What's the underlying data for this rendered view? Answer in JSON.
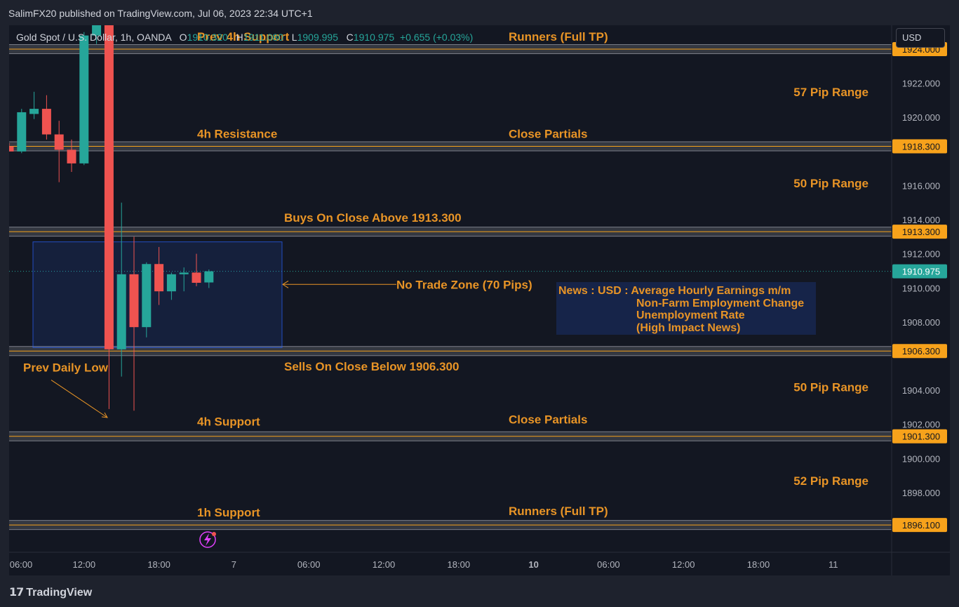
{
  "header": {
    "published": "SalimFX20 published on TradingView.com, Jul 06, 2023 22:34 UTC+1"
  },
  "legend": {
    "symbol": "Gold Spot / U.S. Dollar, 1h, OANDA",
    "o_label": "O",
    "o_value": "1910.320",
    "h_label": "H",
    "h_value": "1911.080",
    "l_label": "L",
    "l_value": "1909.995",
    "c_label": "C",
    "c_value": "1910.975",
    "change": "+0.655 (+0.03%)"
  },
  "currency_button": "USD",
  "brand": "TradingView",
  "colors": {
    "up": "#26a69a",
    "down": "#ef5350",
    "level_line": "#f7a21b",
    "annotation": "#e89426",
    "zone_border": "#2962ff",
    "last_price": "#26a69a"
  },
  "chart_data": {
    "type": "candlestick",
    "instrument": "Gold Spot / U.S. Dollar",
    "timeframe": "1h",
    "ylim": [
      1894.5,
      1925.4
    ],
    "y_ticks": [
      "1922.000",
      "1920.000",
      "1916.000",
      "1914.000",
      "1912.000",
      "1910.000",
      "1908.000",
      "1904.000",
      "1902.000",
      "1900.000",
      "1898.000"
    ],
    "y_tick_values": [
      1922,
      1920,
      1916,
      1914,
      1912,
      1910,
      1908,
      1904,
      1902,
      1900,
      1898
    ],
    "x_ticks": [
      {
        "label": "06:00",
        "bold": false,
        "bar": 0
      },
      {
        "label": "12:00",
        "bold": false,
        "bar": 6
      },
      {
        "label": "18:00",
        "bold": false,
        "bar": 12
      },
      {
        "label": "7",
        "bold": false,
        "bar": 18
      },
      {
        "label": "06:00",
        "bold": false,
        "bar": 24
      },
      {
        "label": "12:00",
        "bold": false,
        "bar": 30
      },
      {
        "label": "18:00",
        "bold": false,
        "bar": 36
      },
      {
        "label": "10",
        "bold": true,
        "bar": 42
      },
      {
        "label": "06:00",
        "bold": false,
        "bar": 48
      },
      {
        "label": "12:00",
        "bold": false,
        "bar": 54
      },
      {
        "label": "18:00",
        "bold": false,
        "bar": 60
      },
      {
        "label": "11",
        "bold": false,
        "bar": 66
      }
    ],
    "candles": [
      {
        "bar": 0,
        "o": 1918.3,
        "h": 1918.5,
        "l": 1918.0,
        "c": 1918.0
      },
      {
        "bar": 1,
        "o": 1918.0,
        "h": 1920.5,
        "l": 1917.9,
        "c": 1920.3
      },
      {
        "bar": 2,
        "o": 1920.2,
        "h": 1921.5,
        "l": 1919.9,
        "c": 1920.5
      },
      {
        "bar": 3,
        "o": 1920.5,
        "h": 1921.3,
        "l": 1918.7,
        "c": 1919.0
      },
      {
        "bar": 4,
        "o": 1919.0,
        "h": 1919.8,
        "l": 1916.2,
        "c": 1918.1
      },
      {
        "bar": 5,
        "o": 1918.1,
        "h": 1918.7,
        "l": 1916.8,
        "c": 1917.3
      },
      {
        "bar": 6,
        "o": 1917.3,
        "h": 1925.0,
        "l": 1917.2,
        "c": 1924.8
      },
      {
        "bar": 7,
        "o": 1924.8,
        "h": 1926.2,
        "l": 1924.3,
        "c": 1926.2
      },
      {
        "bar": 8,
        "o": 1926.2,
        "h": 1926.3,
        "l": 1902.9,
        "c": 1906.4
      },
      {
        "bar": 9,
        "o": 1906.4,
        "h": 1915.0,
        "l": 1904.8,
        "c": 1910.8
      },
      {
        "bar": 10,
        "o": 1910.8,
        "h": 1913.0,
        "l": 1902.8,
        "c": 1907.7
      },
      {
        "bar": 11,
        "o": 1907.7,
        "h": 1911.5,
        "l": 1907.1,
        "c": 1911.4
      },
      {
        "bar": 12,
        "o": 1911.4,
        "h": 1912.4,
        "l": 1909.0,
        "c": 1909.8
      },
      {
        "bar": 13,
        "o": 1909.8,
        "h": 1910.9,
        "l": 1909.3,
        "c": 1910.8
      },
      {
        "bar": 14,
        "o": 1910.8,
        "h": 1911.2,
        "l": 1909.8,
        "c": 1910.9
      },
      {
        "bar": 15,
        "o": 1910.9,
        "h": 1912.0,
        "l": 1910.1,
        "c": 1910.3
      },
      {
        "bar": 16,
        "o": 1910.32,
        "h": 1911.08,
        "l": 1909.995,
        "c": 1910.975
      }
    ],
    "levels": [
      {
        "price": 1924.0,
        "label": "1924.000"
      },
      {
        "price": 1918.3,
        "label": "1918.300"
      },
      {
        "price": 1913.3,
        "label": "1913.300"
      },
      {
        "price": 1906.3,
        "label": "1906.300"
      },
      {
        "price": 1901.3,
        "label": "1901.300"
      },
      {
        "price": 1896.1,
        "label": "1896.100"
      }
    ],
    "last_price": {
      "price": 1910.975,
      "label": "1910.975"
    },
    "no_trade_zone": {
      "from_bar": 2,
      "to_bar": 22,
      "top": 1912.7,
      "bottom": 1906.5
    },
    "annotations": {
      "prev_4h_support": "Prev 4h Support",
      "runners_top": "Runners (Full TP)",
      "range_57": "57 Pip Range",
      "resistance_4h": "4h Resistance",
      "close_partials_top": "Close Partials",
      "range_50_top": "50 Pip Range",
      "buys": "Buys On Close Above 1913.300",
      "no_trade_zone": "No Trade Zone (70 Pips)",
      "sells": "Sells On Close Below 1906.300",
      "prev_daily_low": "Prev Daily Low",
      "range_50_bottom": "50 Pip Range",
      "support_4h": "4h Support",
      "close_partials_bottom": "Close Partials",
      "range_52": "52 Pip Range",
      "support_1h": "1h Support",
      "runners_bottom": "Runners (Full TP)"
    },
    "news_box": {
      "line1": "News : USD : Average Hourly Earnings m/m",
      "line2": "Non-Farm Employment Change",
      "line3": "Unemployment Rate",
      "line4": "(High Impact News)"
    }
  }
}
